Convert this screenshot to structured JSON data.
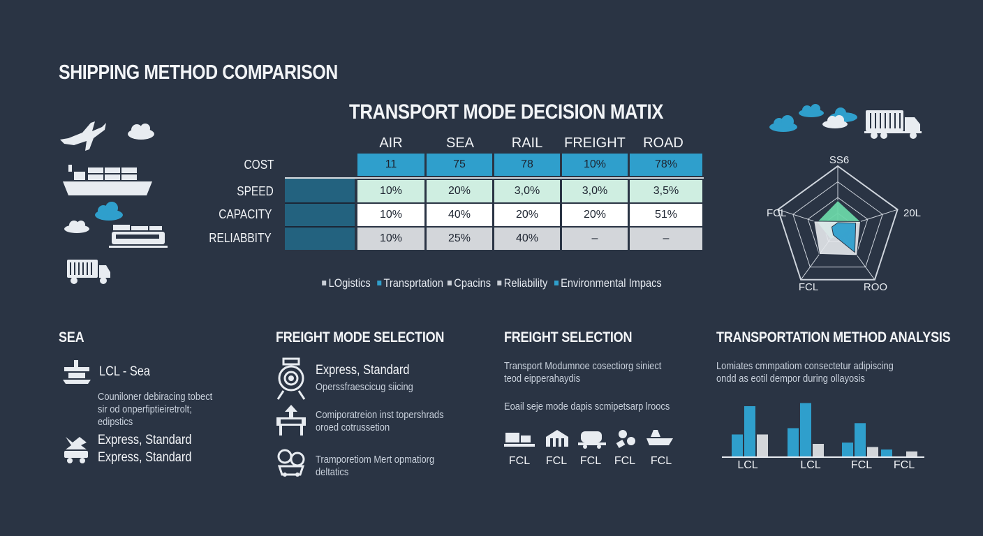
{
  "title": "SHIPPING METHOD COMPARISON",
  "colors": {
    "background": "#2a3444",
    "accent_blue": "#2f9fcc",
    "mint": "#cfeee1",
    "grey": "#d3d6da",
    "dark_blue": "#23627f"
  },
  "icons_left": [
    "airplane-icon",
    "cloud-icon",
    "cargo-ship-icon",
    "cloud-icon",
    "train-icon",
    "truck-icon"
  ],
  "icons_top_right": [
    "cloud-icon",
    "cloud-icon",
    "cloud-icon",
    "container-truck-icon"
  ],
  "chart_data": [
    {
      "type": "table",
      "title": "TRANSPORT MODE DECISION MATIX",
      "columns": [
        "AIR",
        "SEA",
        "RAIL",
        "FREIGHT",
        "ROAD"
      ],
      "rows": [
        {
          "label": "COST",
          "values": [
            "11",
            "75",
            "78",
            "10%",
            "78%"
          ]
        },
        {
          "label": "SPEED",
          "values": [
            "10%",
            "20%",
            "3,0%",
            "3,0%",
            "3,5%"
          ]
        },
        {
          "label": "CAPACITY",
          "values": [
            "10%",
            "40%",
            "20%",
            "20%",
            "51%"
          ]
        },
        {
          "label": "RELIABBITY",
          "values": [
            "10%",
            "25%",
            "40%",
            "–",
            "–"
          ]
        }
      ],
      "legend": [
        "LOgistics",
        "Transprtation",
        "Cpacins",
        "Reliability",
        "Environmental Impacs"
      ]
    },
    {
      "type": "radar",
      "axes": [
        "SS6",
        "20L",
        "ROO",
        "FCL",
        "FCL"
      ],
      "series": [
        {
          "name": "green",
          "values": [
            0.45,
            0.38,
            0.12,
            0.2,
            0.35
          ]
        },
        {
          "name": "white",
          "values": [
            0.12,
            0.38,
            0.52,
            0.5,
            0.4
          ]
        },
        {
          "name": "blue",
          "values": [
            0.1,
            0.3,
            0.46,
            0.12,
            0.1
          ]
        }
      ]
    },
    {
      "type": "bar",
      "title": "TRANSPORTATION METHOD ANALYSIS",
      "categories": [
        "LCL",
        "LCL",
        "FCL",
        "FCL"
      ],
      "series": [
        {
          "name": "blue-short",
          "values": [
            35,
            45,
            22,
            11
          ]
        },
        {
          "name": "blue-tall",
          "values": [
            80,
            85,
            53,
            0
          ]
        },
        {
          "name": "grey",
          "values": [
            35,
            20,
            15,
            8
          ]
        }
      ],
      "ylim": [
        0,
        100
      ]
    }
  ],
  "sections": {
    "sea": {
      "title": "SEA",
      "item1": {
        "title": "LCL - Sea",
        "text": [
          "Couniloner debiracing tobect",
          "sir od onperfiptieiretrolt;",
          "edipstics"
        ]
      },
      "item2": {
        "lines": [
          "Express, Standard",
          "Express, Standard"
        ]
      }
    },
    "freight_mode": {
      "title": "FREIGHT MODE SELECTION",
      "items": [
        {
          "title": "Express, Standard",
          "text": [
            "Operssfraescicug siicing"
          ]
        },
        {
          "title": "",
          "text": [
            "Comiporatreion inst topershrads",
            "oroed cotrussetion"
          ]
        },
        {
          "title": "",
          "text": [
            "Tramporetiom Mert opmatiorg",
            "deltatics"
          ]
        }
      ]
    },
    "freight_selection": {
      "title": "FREIGHT SELECTION",
      "text1": [
        "Transport Modumnoe cosectiorg siniect",
        "teod eipperahaydis"
      ],
      "text2": "Eoail seje mode dapis scmipetsarp lroocs",
      "icon_labels": [
        "FCL",
        "FCL",
        "FCL",
        "FCL",
        "FCL"
      ]
    },
    "analysis": {
      "text": [
        "Lomiates cmmpatiom consectetur adipiscing",
        "ondd as eotil dempor during ollayosis"
      ]
    }
  }
}
